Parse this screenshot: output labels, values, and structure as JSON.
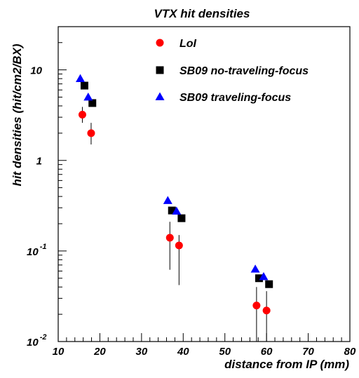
{
  "chart_data": {
    "type": "scatter",
    "title": "VTX hit densities",
    "xlabel": "distance from IP (mm)",
    "ylabel": "hit densities (hit/cm2/BX)",
    "xlim": [
      10,
      80
    ],
    "ylim": [
      0.01,
      30
    ],
    "yscale": "log",
    "grid": false,
    "legend": "top-center",
    "xticks": [
      {
        "v": 10,
        "label": "10"
      },
      {
        "v": 20,
        "label": "20"
      },
      {
        "v": 30,
        "label": "30"
      },
      {
        "v": 40,
        "label": "40"
      },
      {
        "v": 50,
        "label": "50"
      },
      {
        "v": 60,
        "label": "60"
      },
      {
        "v": 70,
        "label": "70"
      },
      {
        "v": 80,
        "label": "80"
      }
    ],
    "yticks": [
      {
        "v": 0.01,
        "base": "10",
        "exp": "-2"
      },
      {
        "v": 0.1,
        "base": "10",
        "exp": "-1"
      },
      {
        "v": 1,
        "base": "1",
        "exp": ""
      },
      {
        "v": 10,
        "base": "10",
        "exp": ""
      }
    ],
    "series": [
      {
        "name": "LoI",
        "marker": "circle",
        "color": "#ff0000",
        "points": [
          {
            "x": 15.8,
            "y": 3.2,
            "lo": 2.6,
            "hi": 3.9
          },
          {
            "x": 17.9,
            "y": 2.0,
            "lo": 1.5,
            "hi": 2.6
          },
          {
            "x": 36.8,
            "y": 0.14,
            "lo": 0.062,
            "hi": 0.21
          },
          {
            "x": 39.0,
            "y": 0.115,
            "lo": 0.042,
            "hi": 0.15
          },
          {
            "x": 57.6,
            "y": 0.025,
            "lo": 0.01,
            "hi": 0.04
          },
          {
            "x": 60.0,
            "y": 0.022,
            "lo": 0.01,
            "hi": 0.036
          }
        ]
      },
      {
        "name": "SB09 no-traveling-focus",
        "marker": "square",
        "color": "#000000",
        "points": [
          {
            "x": 16.3,
            "y": 6.7
          },
          {
            "x": 18.2,
            "y": 4.3
          },
          {
            "x": 37.3,
            "y": 0.28
          },
          {
            "x": 39.6,
            "y": 0.23
          },
          {
            "x": 58.2,
            "y": 0.05
          },
          {
            "x": 60.6,
            "y": 0.043
          }
        ]
      },
      {
        "name": "SB09 traveling-focus",
        "marker": "triangle",
        "color": "#0000ff",
        "points": [
          {
            "x": 15.3,
            "y": 8.0
          },
          {
            "x": 17.2,
            "y": 5.0
          },
          {
            "x": 36.3,
            "y": 0.36
          },
          {
            "x": 38.4,
            "y": 0.275
          },
          {
            "x": 57.3,
            "y": 0.063
          },
          {
            "x": 59.3,
            "y": 0.052
          }
        ]
      }
    ]
  }
}
